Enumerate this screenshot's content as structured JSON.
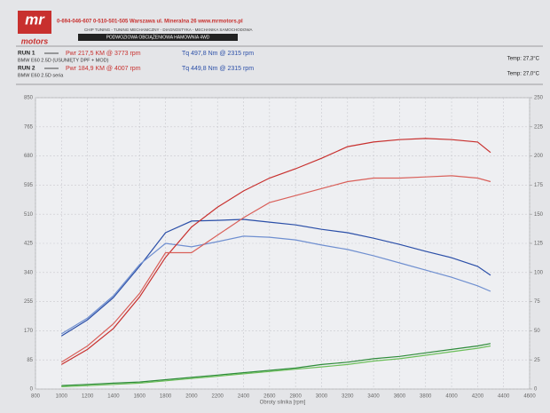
{
  "header": {
    "logo_top": "mr",
    "logo_bottom": "motors",
    "contact": "0-694-046-607   0-510-501-505   Warszawa ul. Mineralna 26   www.mrmotors.pl",
    "services": "CHIP TUNING - TUNING MECHANICZNY - DIAGNOSTYKA - MECHANIKA SAMOCHODOWA",
    "banner": "PODWOZIOWA OBCIĄŻENIOWA HAMOWNIA 4WD"
  },
  "runs": [
    {
      "label": "RUN 1",
      "power": "Pwr 217,5 KM @ 3773 rpm",
      "torque": "Tq 497,8 Nm @ 2315 rpm",
      "car": "BMW E60 2.5D (USUNIĘTY DPF + MOD)",
      "temp": "Temp: 27,3°C"
    },
    {
      "label": "RUN 2",
      "power": "Pwr 184,9 KM @ 4007 rpm",
      "torque": "Tq 449,8 Nm @ 2315 rpm",
      "car": "BMW E60 2.5D seria",
      "temp": "Temp: 27,0°C"
    }
  ],
  "chart_data": {
    "type": "line",
    "x_label": "Obroty silnika [rpm]",
    "x": [
      1000,
      1200,
      1400,
      1600,
      1800,
      2000,
      2200,
      2400,
      2600,
      2800,
      3000,
      3200,
      3400,
      3600,
      3800,
      4000,
      4200,
      4300
    ],
    "xlim": [
      800,
      4600
    ],
    "xticks": [
      800,
      1000,
      1200,
      1400,
      1600,
      1800,
      2000,
      2200,
      2400,
      2600,
      2800,
      3000,
      3200,
      3400,
      3600,
      3800,
      4000,
      4200,
      4400,
      4600
    ],
    "ylim": [
      0,
      850
    ],
    "yticks": [
      0,
      85,
      170,
      255,
      340,
      425,
      510,
      595,
      680,
      765,
      850
    ],
    "y2lim": [
      0,
      250
    ],
    "y2ticks": [
      0,
      25,
      50,
      75,
      100,
      125,
      150,
      175,
      200,
      225,
      250
    ],
    "grid": true,
    "series": [
      {
        "color": "#2b4fa8",
        "values": [
          155,
          202,
          267,
          358,
          456,
          490,
          492,
          495,
          487,
          479,
          466,
          456,
          440,
          422,
          402,
          383,
          358,
          332
        ]
      },
      {
        "color": "#6f8fd0",
        "values": [
          161,
          207,
          272,
          363,
          425,
          415,
          430,
          446,
          443,
          435,
          420,
          407,
          389,
          368,
          347,
          326,
          301,
          285
        ]
      },
      {
        "color": "#c8302e",
        "axis": "y2",
        "values": [
          21,
          34,
          52,
          79,
          113,
          139,
          156,
          170,
          181,
          189,
          198,
          208,
          212,
          214,
          215,
          214,
          212,
          203
        ]
      },
      {
        "color": "#d9605a",
        "axis": "y2",
        "values": [
          23,
          37,
          56,
          82,
          117,
          117,
          132,
          147,
          160,
          166,
          172,
          178,
          181,
          181,
          182,
          183,
          181,
          178
        ]
      },
      {
        "color": "#2e8b3a",
        "axis": "y2",
        "values": [
          3,
          4,
          5,
          6,
          8,
          10,
          12,
          14,
          16,
          18,
          21,
          23,
          26,
          28,
          31,
          34,
          37,
          39
        ]
      },
      {
        "color": "#6cbf5a",
        "axis": "y2",
        "values": [
          2,
          3,
          4,
          5,
          7,
          9,
          11,
          13,
          15,
          17,
          19,
          21,
          24,
          26,
          29,
          32,
          35,
          37
        ]
      }
    ]
  }
}
